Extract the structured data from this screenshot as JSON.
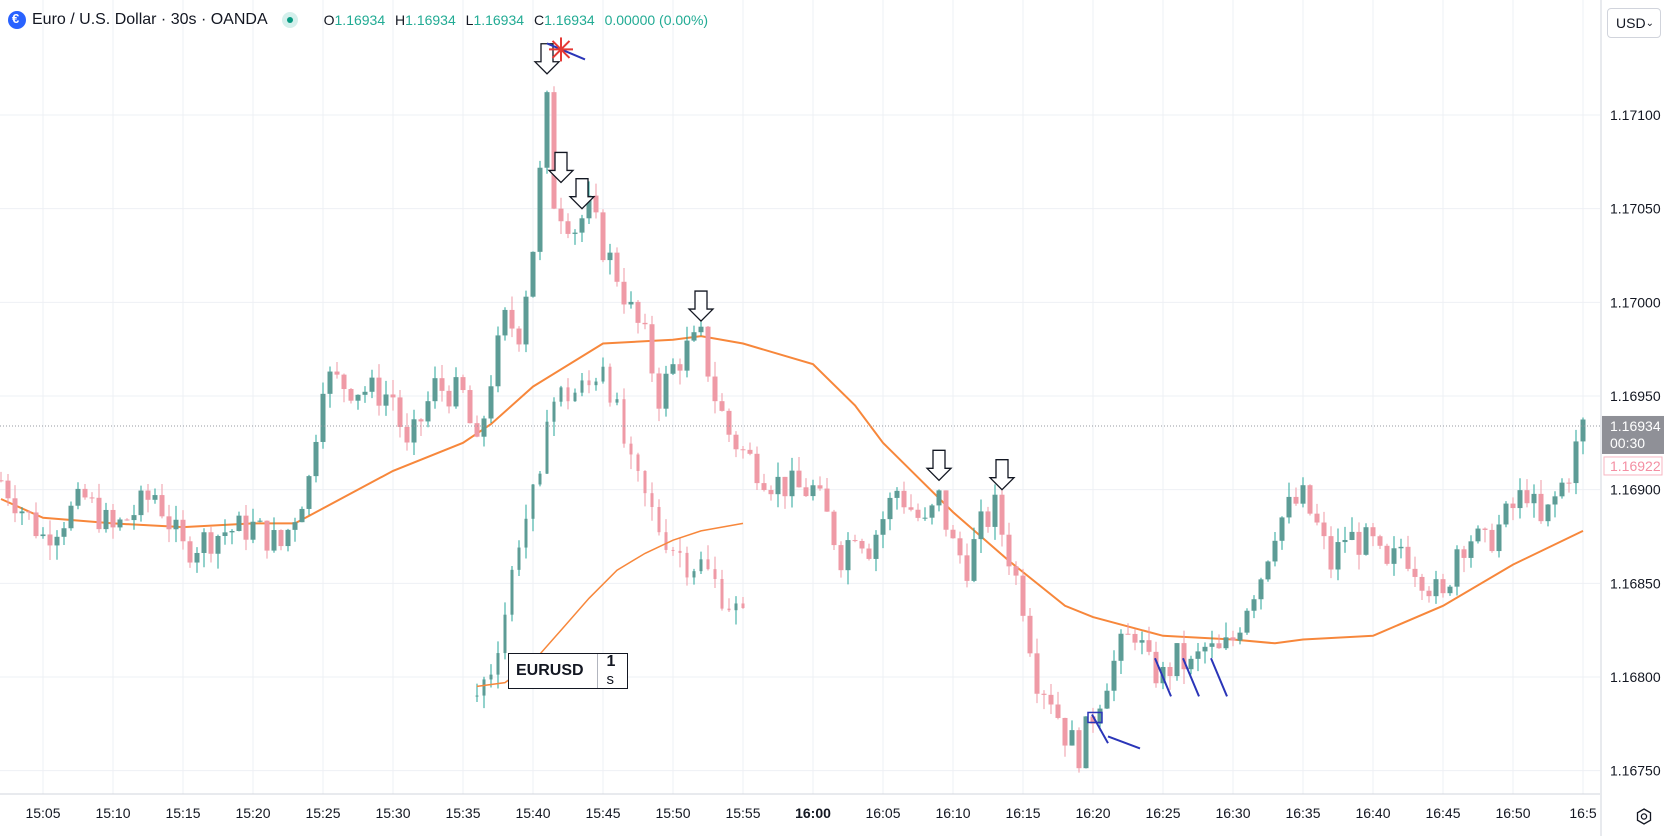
{
  "legend": {
    "title": "Euro / U.S. Dollar · 30s · OANDA",
    "o_label": "O",
    "o": "1.16934",
    "h_label": "H",
    "h": "1.16934",
    "l_label": "L",
    "l": "1.16934",
    "c_label": "C",
    "c": "1.16934",
    "change": "0.00000 (0.00%)"
  },
  "currency": "USD",
  "price_axis": {
    "last_price": "1.16934",
    "countdown": "00:30",
    "other_price": "1.16922"
  },
  "watermark": {
    "symbol": "EURUSD",
    "interval_num": "1",
    "interval_unit": "s"
  },
  "colors": {
    "up": "#26a69a",
    "up_fill": "#5d9c96",
    "down": "#ef9aa6",
    "ma": "#f7873b",
    "drawing": "#2a35b8",
    "marker": "#e53935",
    "grid": "#eef0f4"
  },
  "icons": {
    "currency_chevron": "chevron-down-icon",
    "settings": "settings-icon",
    "symbol": "euro-flag-icon",
    "status": "market-open-icon"
  },
  "chart_data": {
    "type": "candlestick",
    "symbol": "EURUSD",
    "interval": "30s",
    "ylim": [
      1.1673,
      1.1718
    ],
    "y_ticks": [
      "1.16750",
      "1.16800",
      "1.16850",
      "1.16900",
      "1.16950",
      "1.17000",
      "1.17050",
      "1.17100"
    ],
    "x_ticks": [
      "15:05",
      "15:10",
      "15:15",
      "15:20",
      "15:25",
      "15:30",
      "15:35",
      "15:40",
      "15:45",
      "15:50",
      "15:55",
      "16:00",
      "16:05",
      "16:10",
      "16:15",
      "16:20",
      "16:25",
      "16:30",
      "16:35",
      "16:40",
      "16:45",
      "16:50",
      "16:5"
    ],
    "x_range": [
      "15:02",
      "16:55"
    ],
    "last_price": 1.16934,
    "price_path": [
      [
        "15:02",
        1.16905
      ],
      [
        "15:05",
        1.16875
      ],
      [
        "15:08",
        1.16895
      ],
      [
        "15:10",
        1.16878
      ],
      [
        "15:13",
        1.16898
      ],
      [
        "15:15",
        1.16868
      ],
      [
        "15:18",
        1.16878
      ],
      [
        "15:20",
        1.1688
      ],
      [
        "15:22",
        1.1687
      ],
      [
        "15:24",
        1.16905
      ],
      [
        "15:25",
        1.1696
      ],
      [
        "15:27",
        1.16955
      ],
      [
        "15:30",
        1.1695
      ],
      [
        "15:31",
        1.1692
      ],
      [
        "15:33",
        1.16955
      ],
      [
        "15:35",
        1.1695
      ],
      [
        "15:36",
        1.1692
      ],
      [
        "15:37",
        1.1696
      ],
      [
        "15:38",
        1.1699
      ],
      [
        "15:39",
        1.16985
      ],
      [
        "15:40",
        1.1703
      ],
      [
        "15:41",
        1.17105
      ],
      [
        "15:41.5",
        1.17055
      ],
      [
        "15:42",
        1.1705
      ],
      [
        "15:43",
        1.1704
      ],
      [
        "15:44",
        1.1705
      ],
      [
        "15:45",
        1.1703
      ],
      [
        "15:46",
        1.17015
      ],
      [
        "15:47",
        1.16995
      ],
      [
        "15:48",
        1.1698
      ],
      [
        "15:49",
        1.1695
      ],
      [
        "15:50",
        1.16965
      ],
      [
        "15:51",
        1.16975
      ],
      [
        "15:52",
        1.1698
      ],
      [
        "15:53",
        1.1695
      ],
      [
        "15:54",
        1.1693
      ],
      [
        "15:55",
        1.1692
      ],
      [
        "15:57",
        1.16905
      ],
      [
        "15:59",
        1.169
      ],
      [
        "16:00",
        1.169
      ],
      [
        "16:01",
        1.16885
      ],
      [
        "16:02",
        1.16865
      ],
      [
        "16:03",
        1.1688
      ],
      [
        "16:04",
        1.1687
      ],
      [
        "16:05",
        1.16885
      ],
      [
        "16:06",
        1.169
      ],
      [
        "16:07",
        1.1689
      ],
      [
        "16:08",
        1.1688
      ],
      [
        "16:09",
        1.16895
      ],
      [
        "16:10",
        1.1687
      ],
      [
        "16:11",
        1.1686
      ],
      [
        "16:12",
        1.1688
      ],
      [
        "16:13",
        1.1689
      ],
      [
        "16:14",
        1.16865
      ],
      [
        "16:15",
        1.1684
      ],
      [
        "16:16",
        1.168
      ],
      [
        "16:17",
        1.1679
      ],
      [
        "16:18",
        1.1677
      ],
      [
        "16:19",
        1.1676
      ],
      [
        "16:20",
        1.1678
      ],
      [
        "16:21",
        1.168
      ],
      [
        "16:22",
        1.16815
      ],
      [
        "16:23",
        1.16825
      ],
      [
        "16:24",
        1.16805
      ],
      [
        "16:25",
        1.168
      ],
      [
        "16:26",
        1.1681
      ],
      [
        "16:27",
        1.16805
      ],
      [
        "16:28",
        1.16815
      ],
      [
        "16:29",
        1.16812
      ],
      [
        "16:30",
        1.1682
      ],
      [
        "16:31",
        1.1684
      ],
      [
        "16:32",
        1.16855
      ],
      [
        "16:33",
        1.1688
      ],
      [
        "16:34",
        1.1689
      ],
      [
        "16:35",
        1.16895
      ],
      [
        "16:36",
        1.1688
      ],
      [
        "16:37",
        1.1686
      ],
      [
        "16:38",
        1.16875
      ],
      [
        "16:40",
        1.1687
      ],
      [
        "16:41",
        1.16855
      ],
      [
        "16:42",
        1.1687
      ],
      [
        "16:43",
        1.1686
      ],
      [
        "16:44",
        1.1685
      ],
      [
        "16:45",
        1.1684
      ],
      [
        "16:46",
        1.1687
      ],
      [
        "16:47",
        1.16875
      ],
      [
        "16:48",
        1.1687
      ],
      [
        "16:49",
        1.1688
      ],
      [
        "16:50",
        1.1689
      ],
      [
        "16:51",
        1.169
      ],
      [
        "16:52",
        1.1688
      ],
      [
        "16:53",
        1.16895
      ],
      [
        "16:54",
        1.1691
      ],
      [
        "16:55",
        1.16934
      ]
    ],
    "moving_average": [
      [
        "15:02",
        1.16895
      ],
      [
        "15:05",
        1.16885
      ],
      [
        "15:10",
        1.16882
      ],
      [
        "15:15",
        1.1688
      ],
      [
        "15:20",
        1.16882
      ],
      [
        "15:23",
        1.16882
      ],
      [
        "15:25",
        1.1689
      ],
      [
        "15:30",
        1.1691
      ],
      [
        "15:35",
        1.16925
      ],
      [
        "15:37",
        1.16935
      ],
      [
        "15:40",
        1.16955
      ],
      [
        "15:45",
        1.16978
      ],
      [
        "15:50",
        1.1698
      ],
      [
        "15:52",
        1.16982
      ],
      [
        "15:55",
        1.16978
      ],
      [
        "16:00",
        1.16967
      ],
      [
        "16:03",
        1.16945
      ],
      [
        "16:05",
        1.16925
      ],
      [
        "16:10",
        1.16888
      ],
      [
        "16:14",
        1.16862
      ],
      [
        "16:18",
        1.16838
      ],
      [
        "16:20",
        1.16832
      ],
      [
        "16:25",
        1.16822
      ],
      [
        "16:30",
        1.1682
      ],
      [
        "16:33",
        1.16818
      ],
      [
        "16:35",
        1.1682
      ],
      [
        "16:40",
        1.16822
      ],
      [
        "16:45",
        1.16838
      ],
      [
        "16:50",
        1.1686
      ],
      [
        "16:55",
        1.16878
      ]
    ],
    "inset": {
      "price_path": [
        [
          "15:36",
          1.1679
        ],
        [
          "15:37",
          1.16805
        ],
        [
          "15:38",
          1.16835
        ],
        [
          "15:39",
          1.16875
        ],
        [
          "15:40",
          1.16895
        ],
        [
          "15:40.5",
          1.169
        ],
        [
          "15:41",
          1.16945
        ],
        [
          "15:42",
          1.1695
        ],
        [
          "15:43",
          1.16952
        ],
        [
          "15:44",
          1.16955
        ],
        [
          "15:45",
          1.1697
        ],
        [
          "15:46",
          1.1694
        ],
        [
          "15:47",
          1.1691
        ],
        [
          "15:48",
          1.16895
        ],
        [
          "15:49",
          1.1688
        ],
        [
          "15:50",
          1.1687
        ],
        [
          "15:51",
          1.16862
        ],
        [
          "15:52",
          1.1686
        ],
        [
          "15:53",
          1.1685
        ],
        [
          "15:54",
          1.1684
        ],
        [
          "15:55",
          1.1683
        ]
      ],
      "moving_average": [
        [
          "15:36",
          1.16795
        ],
        [
          "15:38",
          1.16797
        ],
        [
          "15:40",
          1.16808
        ],
        [
          "15:42",
          1.16825
        ],
        [
          "15:44",
          1.16842
        ],
        [
          "15:46",
          1.16857
        ],
        [
          "15:48",
          1.16866
        ],
        [
          "15:50",
          1.16873
        ],
        [
          "15:52",
          1.16878
        ],
        [
          "15:55",
          1.16882
        ]
      ]
    },
    "annotations": {
      "down_arrows": [
        [
          "15:41",
          1.17122
        ],
        [
          "15:42",
          1.17064
        ],
        [
          "15:43.5",
          1.1705
        ],
        [
          "15:52",
          1.1699
        ],
        [
          "16:09",
          1.16905
        ],
        [
          "16:13.5",
          1.169
        ]
      ],
      "star": [
        "15:42",
        1.17135
      ],
      "trend_marks": [
        [
          "16:20.5",
          1.1677,
          1.1678
        ],
        [
          "16:25",
          1.16795,
          1.1681
        ],
        [
          "16:27",
          1.16795,
          1.1681
        ],
        [
          "16:29",
          1.16795,
          1.1681
        ]
      ]
    }
  }
}
